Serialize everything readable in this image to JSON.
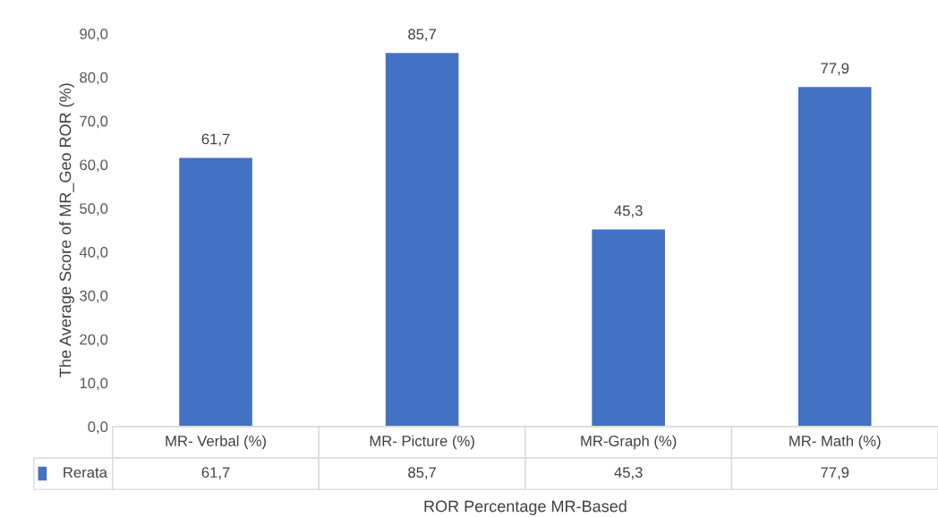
{
  "chart_data": {
    "type": "bar",
    "ylabel": "The Average Score of MR_Geo ROR (%)",
    "xlabel": "ROR Percentage MR-Based",
    "categories": [
      "MR- Verbal (%)",
      "MR- Picture (%)",
      "MR-Graph (%)",
      "MR- Math (%)"
    ],
    "series": [
      {
        "name": "Rerata",
        "color": "#4472c4",
        "values": [
          61.7,
          85.7,
          45.3,
          77.9
        ],
        "value_labels": [
          "61,7",
          "85,7",
          "45,3",
          "77,9"
        ]
      }
    ],
    "ylim": [
      0,
      90
    ],
    "yticks": [
      {
        "value": 0,
        "label": "0,0"
      },
      {
        "value": 10,
        "label": "10,0"
      },
      {
        "value": 20,
        "label": "20,0"
      },
      {
        "value": 30,
        "label": "30,0"
      },
      {
        "value": 40,
        "label": "40,0"
      },
      {
        "value": 50,
        "label": "50,0"
      },
      {
        "value": 60,
        "label": "60,0"
      },
      {
        "value": 70,
        "label": "70,0"
      },
      {
        "value": 80,
        "label": "80,0"
      },
      {
        "value": 90,
        "label": "90,0"
      }
    ],
    "grid": false,
    "legend": "bottom"
  }
}
